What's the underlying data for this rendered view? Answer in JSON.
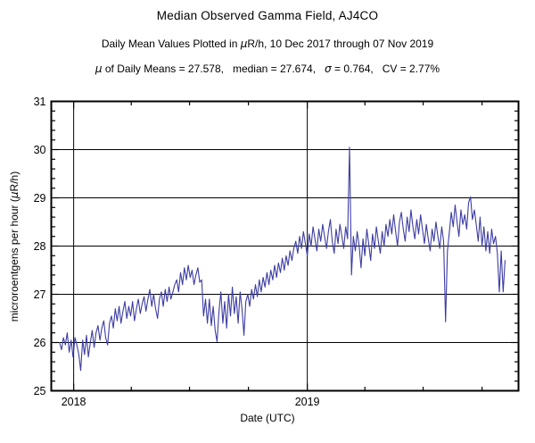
{
  "chart_data": {
    "type": "line",
    "title": "Median Observed Gamma Field, AJ4CO",
    "subtitle": {
      "pre_mu": "Daily Mean Values Plotted in ",
      "mu": "μ",
      "post_mu": "R/h, 10 Dec 2017 through 07 Nov 2019"
    },
    "stats": {
      "mu": "μ",
      "mid": " of Daily Means = 27.578,   median = 27.674,   ",
      "sigma": "σ",
      "end": " = 0.764,   CV = 2.77%"
    },
    "xlabel": "Date (UTC)",
    "ylabel": {
      "pre": "microroentgens per hour (",
      "mu": "μ",
      "post": "R/h)"
    },
    "mean_of_daily_means": 27.578,
    "median": 27.674,
    "sigma": 0.764,
    "cv_percent": 2.77,
    "line_color": "#3d3da3",
    "axis_color": "#000000",
    "x_axis": {
      "domain_days": [
        0,
        730
      ],
      "major_ticks": [
        {
          "day": 35,
          "label": "2018"
        },
        {
          "day": 400,
          "label": "2019"
        }
      ],
      "minor_tick_days": [
        125,
        216,
        308,
        490,
        581,
        673
      ],
      "grid_at_major": true
    },
    "y_axis": {
      "range": [
        25,
        31
      ],
      "major_tick_step": 1,
      "minor_tick_step": 0.2,
      "tick_labels": [
        "25",
        "26",
        "27",
        "28",
        "29",
        "30",
        "31"
      ],
      "grid_values": [
        26,
        27,
        28,
        29,
        30
      ]
    },
    "series": {
      "name": "daily_mean_gamma_uR_per_h",
      "start_day": 13,
      "step_days": 3,
      "values": [
        26.0,
        25.85,
        26.1,
        25.95,
        26.2,
        25.8,
        26.05,
        25.7,
        26.1,
        25.95,
        25.75,
        25.42,
        26.05,
        25.75,
        26.15,
        25.7,
        26.0,
        26.25,
        25.9,
        26.2,
        26.35,
        26.05,
        26.3,
        26.45,
        26.1,
        25.95,
        26.4,
        26.55,
        26.3,
        26.7,
        26.45,
        26.75,
        26.4,
        26.65,
        26.85,
        26.5,
        26.75,
        26.55,
        26.85,
        26.45,
        26.7,
        26.9,
        26.6,
        26.8,
        26.95,
        26.65,
        26.9,
        27.1,
        26.75,
        27.0,
        26.7,
        26.5,
        26.9,
        27.05,
        26.75,
        27.1,
        26.85,
        27.15,
        26.9,
        27.05,
        27.2,
        27.3,
        27.05,
        27.45,
        27.2,
        27.55,
        27.3,
        27.6,
        27.35,
        27.5,
        27.2,
        27.4,
        27.55,
        27.25,
        27.3,
        26.55,
        26.9,
        26.4,
        26.9,
        26.35,
        26.75,
        26.25,
        26.02,
        26.65,
        27.05,
        26.4,
        26.85,
        26.3,
        27.0,
        26.55,
        27.15,
        26.6,
        26.95,
        26.4,
        27.05,
        26.7,
        26.15,
        26.85,
        27.0,
        26.75,
        27.1,
        26.9,
        27.2,
        26.95,
        27.3,
        27.05,
        27.35,
        27.15,
        27.45,
        27.2,
        27.5,
        27.3,
        27.6,
        27.35,
        27.65,
        27.45,
        27.75,
        27.5,
        27.8,
        27.6,
        27.9,
        27.7,
        27.95,
        28.1,
        27.85,
        28.2,
        27.95,
        28.3,
        28.05,
        27.8,
        28.25,
        28.0,
        28.4,
        28.15,
        27.9,
        28.35,
        28.1,
        28.45,
        28.2,
        27.95,
        28.3,
        28.55,
        28.1,
        27.85,
        28.35,
        28.05,
        28.45,
        28.2,
        27.95,
        28.4,
        28.15,
        30.05,
        27.4,
        28.2,
        27.9,
        28.3,
        28.0,
        27.55,
        28.15,
        27.8,
        28.35,
        28.05,
        27.7,
        28.25,
        27.95,
        28.4,
        28.1,
        27.85,
        28.3,
        28.0,
        28.45,
        28.2,
        28.55,
        28.25,
        28.65,
        28.3,
        28.0,
        28.5,
        28.7,
        28.35,
        28.1,
        28.6,
        28.3,
        28.75,
        28.4,
        28.15,
        28.55,
        28.25,
        28.65,
        28.35,
        28.05,
        28.45,
        28.15,
        27.9,
        28.35,
        28.1,
        28.5,
        28.2,
        27.95,
        28.4,
        28.1,
        26.43,
        27.9,
        28.3,
        28.7,
        28.4,
        28.85,
        28.5,
        28.2,
        28.75,
        28.45,
        28.65,
        28.35,
        28.9,
        29.02,
        28.55,
        28.75,
        28.45,
        28.1,
        28.6,
        28.0,
        28.4,
        27.9,
        28.3,
        27.85,
        28.35,
        28.05,
        28.2,
        27.85,
        27.05,
        27.9,
        27.05,
        27.7
      ]
    }
  }
}
